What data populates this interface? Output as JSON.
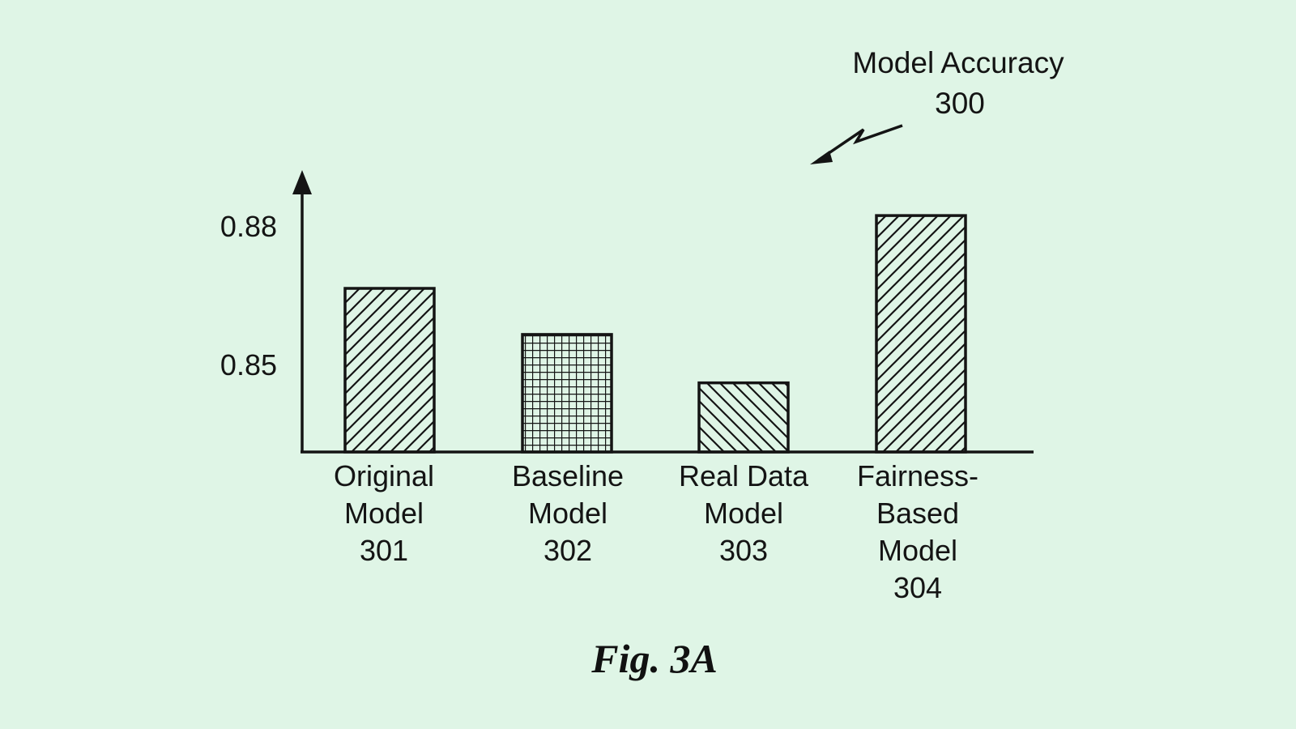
{
  "chart_data": {
    "type": "bar",
    "title": "Model Accuracy",
    "title_ref": "300",
    "figure_caption": "Fig. 3A",
    "yticks": [
      {
        "value": 0.85,
        "label": "0.85"
      },
      {
        "value": 0.88,
        "label": "0.88"
      }
    ],
    "categories": [
      {
        "lines": [
          "Original",
          "Model",
          "301"
        ],
        "value": 0.8665,
        "pattern": "diag-up"
      },
      {
        "lines": [
          "Baseline",
          "Model",
          "302"
        ],
        "value": 0.8565,
        "pattern": "grid"
      },
      {
        "lines": [
          "Real Data",
          "Model",
          "303"
        ],
        "value": 0.846,
        "pattern": "diag-down"
      },
      {
        "lines": [
          "Fairness-",
          "Based",
          "Model",
          "304"
        ],
        "value": 0.8823,
        "pattern": "diag-up"
      }
    ],
    "ylim": [
      0.831,
      0.889
    ],
    "axis_stroke": "#141414",
    "background": "#dff5e6"
  }
}
